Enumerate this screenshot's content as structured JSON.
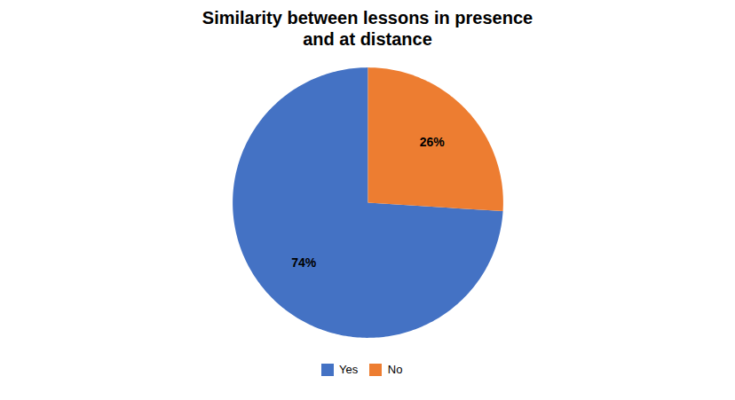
{
  "chart_data": {
    "type": "pie",
    "title": "Similarity between lessons in presence\nand at distance",
    "categories": [
      "Yes",
      "No"
    ],
    "values": [
      74,
      26
    ],
    "value_labels": [
      "74%",
      "26%"
    ],
    "colors": [
      "#4472C4",
      "#ED7D31"
    ],
    "data_labels": true,
    "legend": "bottom"
  }
}
